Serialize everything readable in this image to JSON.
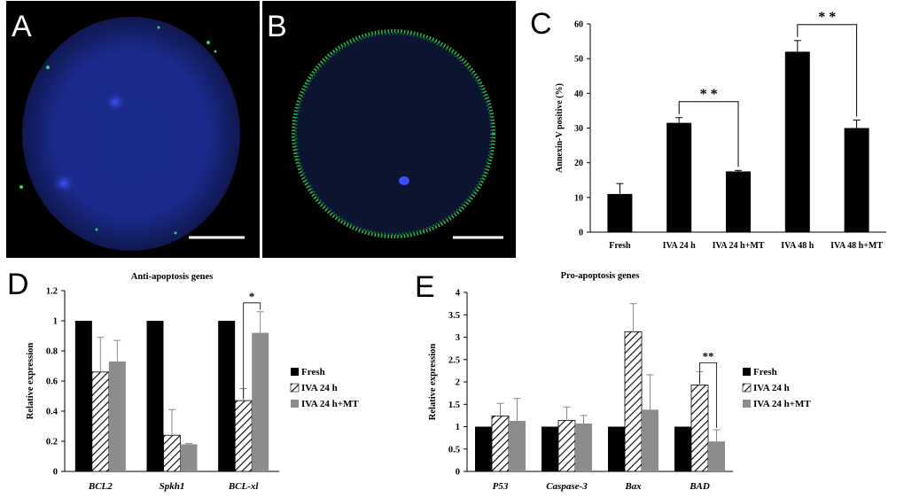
{
  "panels": {
    "A": {
      "letter": "A"
    },
    "B": {
      "letter": "B"
    },
    "C": {
      "letter": "C"
    },
    "D": {
      "letter": "D"
    },
    "E": {
      "letter": "E"
    }
  },
  "chart_data": [
    {
      "id": "C",
      "type": "bar",
      "title": "",
      "xlabel": "",
      "ylabel": "Annexin-V positive (%)",
      "ylim": [
        0,
        60
      ],
      "yticks": [
        0,
        10,
        20,
        30,
        40,
        50,
        60
      ],
      "categories": [
        "Fresh",
        "IVA 24 h",
        "IVA 24 h+MT",
        "IVA 48 h",
        "IVA 48 h+MT"
      ],
      "series": [
        {
          "values": [
            11,
            31.5,
            17.5,
            52,
            30
          ],
          "errors": [
            3,
            1.5,
            0.3,
            3.2,
            2.3
          ]
        }
      ],
      "colors": [
        "#000000"
      ],
      "annotations": [
        {
          "from": 1,
          "to": 2,
          "label": "* *"
        },
        {
          "from": 3,
          "to": 4,
          "label": "* *"
        }
      ],
      "grid": false,
      "legend": "none"
    },
    {
      "id": "D",
      "type": "bar",
      "title": "Anti-apoptosis genes",
      "xlabel": "",
      "ylabel": "Relative expression",
      "ylim": [
        0,
        1.2
      ],
      "yticks": [
        "0",
        "0.2",
        "0.4",
        "0.6",
        "0.8",
        "1",
        "1.2"
      ],
      "categories": [
        "BCL2",
        "Spkh1",
        "BCL-xl"
      ],
      "series": [
        {
          "name": "Fresh",
          "values": [
            1,
            1,
            1
          ],
          "errors": [
            0,
            0,
            0
          ]
        },
        {
          "name": "IVA 24 h",
          "values": [
            0.66,
            0.24,
            0.47
          ],
          "errors": [
            0.23,
            0.17,
            0.08
          ]
        },
        {
          "name": "IVA 24 h+MT",
          "values": [
            0.73,
            0.18,
            0.92
          ],
          "errors": [
            0.14,
            0.005,
            0.14
          ]
        }
      ],
      "colors": [
        "#000000",
        "hatch",
        "#8c8c8c"
      ],
      "annotations": [
        {
          "category": 2,
          "from": 1,
          "to": 2,
          "label": "*"
        }
      ],
      "grid": false,
      "legend": "right"
    },
    {
      "id": "E",
      "type": "bar",
      "title": "Pro-apoptosis genes",
      "xlabel": "",
      "ylabel": "Relative expression",
      "ylim": [
        0,
        4
      ],
      "yticks": [
        "0",
        "0.5",
        "1",
        "1.5",
        "2",
        "2.5",
        "3",
        "3.5",
        "4"
      ],
      "categories": [
        "P53",
        "Caspase-3",
        "Bax",
        "BAD"
      ],
      "series": [
        {
          "name": "Fresh",
          "values": [
            1,
            1,
            1,
            1
          ],
          "errors": [
            0,
            0,
            0,
            0
          ]
        },
        {
          "name": "IVA 24 h",
          "values": [
            1.24,
            1.14,
            3.12,
            1.93
          ],
          "errors": [
            0.28,
            0.3,
            0.63,
            0.3
          ]
        },
        {
          "name": "IVA 24 h+MT",
          "values": [
            1.13,
            1.07,
            1.38,
            0.67
          ],
          "errors": [
            0.5,
            0.18,
            0.78,
            0.26
          ]
        }
      ],
      "colors": [
        "#000000",
        "hatch",
        "#8c8c8c"
      ],
      "annotations": [
        {
          "category": 3,
          "from": 1,
          "to": 2,
          "label": "**"
        }
      ],
      "grid": false,
      "legend": "right"
    }
  ]
}
